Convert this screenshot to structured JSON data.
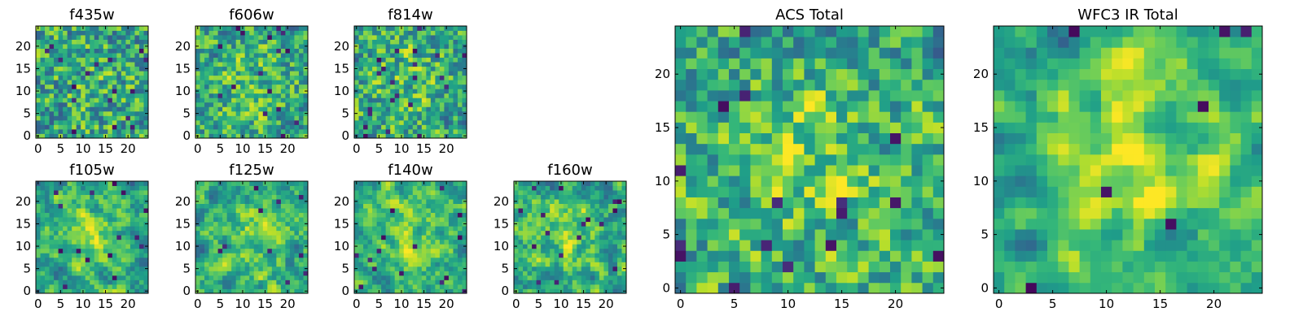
{
  "figure": {
    "background": "#ffffff",
    "colormap": "viridis",
    "colormap_stops": [
      "#440154",
      "#482878",
      "#3e4a89",
      "#31688e",
      "#26828e",
      "#1f9e89",
      "#35b779",
      "#6ece58",
      "#b5de2b",
      "#fde725"
    ]
  },
  "chart_data": [
    {
      "type": "heatmap",
      "name": "f435w",
      "title": "f435w",
      "rows": 25,
      "cols": 25,
      "xlim": [
        0,
        24
      ],
      "ylim": [
        0,
        24
      ],
      "xticks": [
        0,
        5,
        10,
        15,
        20
      ],
      "yticks": [
        0,
        5,
        10,
        15,
        20
      ],
      "seed": 435,
      "smooth": 0.2,
      "center_boost": 0.05,
      "hole_rate": 0.03
    },
    {
      "type": "heatmap",
      "name": "f606w",
      "title": "f606w",
      "rows": 25,
      "cols": 25,
      "xlim": [
        0,
        24
      ],
      "ylim": [
        0,
        24
      ],
      "xticks": [
        0,
        5,
        10,
        15,
        20
      ],
      "yticks": [
        0,
        5,
        10,
        15,
        20
      ],
      "seed": 606,
      "smooth": 0.3,
      "center_boost": 0.12,
      "hole_rate": 0.03
    },
    {
      "type": "heatmap",
      "name": "f814w",
      "title": "f814w",
      "rows": 25,
      "cols": 25,
      "xlim": [
        0,
        24
      ],
      "ylim": [
        0,
        24
      ],
      "xticks": [
        0,
        5,
        10,
        15,
        20
      ],
      "yticks": [
        0,
        5,
        10,
        15,
        20
      ],
      "seed": 814,
      "smooth": 0.3,
      "center_boost": 0.12,
      "hole_rate": 0.03
    },
    {
      "type": "heatmap",
      "name": "f105w",
      "title": "f105w",
      "rows": 25,
      "cols": 25,
      "xlim": [
        0,
        24
      ],
      "ylim": [
        0,
        24
      ],
      "xticks": [
        0,
        5,
        10,
        15,
        20
      ],
      "yticks": [
        0,
        5,
        10,
        15,
        20
      ],
      "seed": 105,
      "smooth": 0.7,
      "center_boost": 0.22,
      "hole_rate": 0.025
    },
    {
      "type": "heatmap",
      "name": "f125w",
      "title": "f125w",
      "rows": 25,
      "cols": 25,
      "xlim": [
        0,
        24
      ],
      "ylim": [
        0,
        24
      ],
      "xticks": [
        0,
        5,
        10,
        15,
        20
      ],
      "yticks": [
        0,
        5,
        10,
        15,
        20
      ],
      "seed": 125,
      "smooth": 0.7,
      "center_boost": 0.18,
      "hole_rate": 0.015
    },
    {
      "type": "heatmap",
      "name": "f140w",
      "title": "f140w",
      "rows": 25,
      "cols": 25,
      "xlim": [
        0,
        24
      ],
      "ylim": [
        0,
        24
      ],
      "xticks": [
        0,
        5,
        10,
        15,
        20
      ],
      "yticks": [
        0,
        5,
        10,
        15,
        20
      ],
      "seed": 140,
      "smooth": 0.7,
      "center_boost": 0.25,
      "hole_rate": 0.025
    },
    {
      "type": "heatmap",
      "name": "f160w",
      "title": "f160w",
      "rows": 25,
      "cols": 25,
      "xlim": [
        0,
        24
      ],
      "ylim": [
        0,
        24
      ],
      "xticks": [
        0,
        5,
        10,
        15,
        20
      ],
      "yticks": [
        0,
        5,
        10,
        15,
        20
      ],
      "seed": 160,
      "smooth": 0.7,
      "center_boost": 0.25,
      "hole_rate": 0.025
    },
    {
      "type": "heatmap",
      "name": "acs-total",
      "title": "ACS Total",
      "rows": 25,
      "cols": 25,
      "xlim": [
        0,
        24
      ],
      "ylim": [
        0,
        24
      ],
      "xticks": [
        0,
        5,
        10,
        15,
        20
      ],
      "yticks": [
        0,
        5,
        10,
        15,
        20
      ],
      "seed": 1234,
      "smooth": 0.45,
      "center_boost": 0.2,
      "hole_rate": 0.02
    },
    {
      "type": "heatmap",
      "name": "wfc3-ir-total",
      "title": "WFC3 IR Total",
      "rows": 25,
      "cols": 25,
      "xlim": [
        0,
        24
      ],
      "ylim": [
        0,
        24
      ],
      "xticks": [
        0,
        5,
        10,
        15,
        20
      ],
      "yticks": [
        0,
        5,
        10,
        15,
        20
      ],
      "seed": 4321,
      "smooth": 0.9,
      "center_boost": 0.3,
      "hole_rate": 0.015
    }
  ]
}
